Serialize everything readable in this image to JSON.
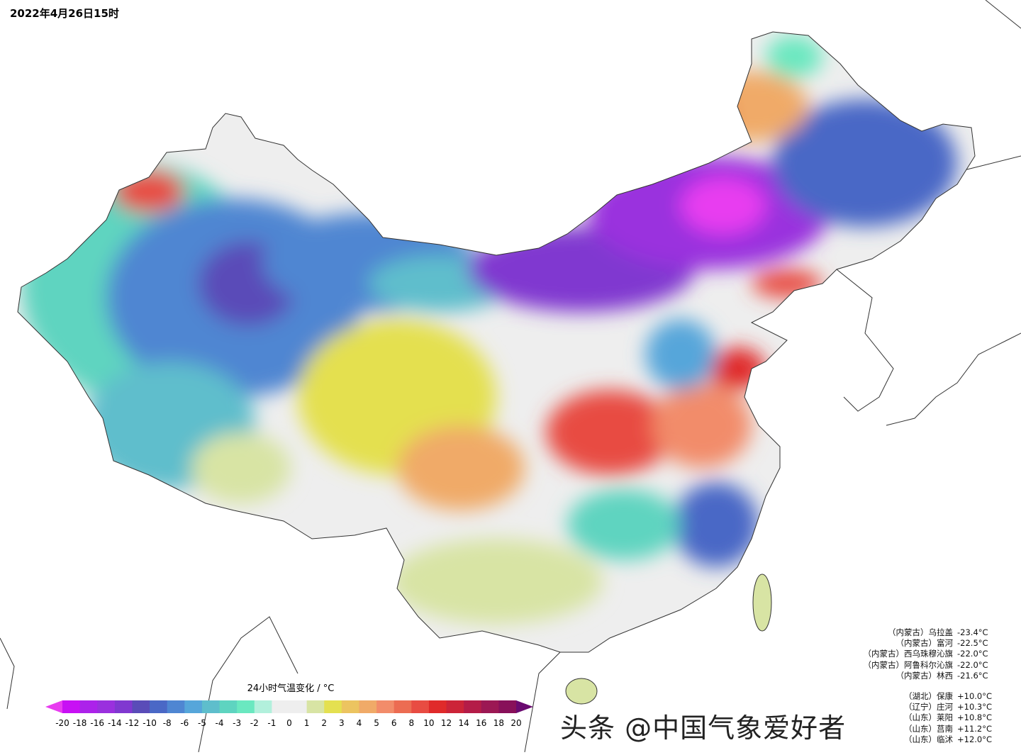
{
  "title": "2022年4月26日15时",
  "legend": {
    "title": "24小时气温变化 / °C",
    "ticks": [
      "-20",
      "-18",
      "-16",
      "-14",
      "-12",
      "-10",
      "-8",
      "-6",
      "-5",
      "-4",
      "-3",
      "-2",
      "-1",
      "0",
      "1",
      "2",
      "3",
      "4",
      "5",
      "6",
      "8",
      "10",
      "12",
      "14",
      "16",
      "18",
      "20"
    ],
    "under_color": "#e83cf0",
    "over_color": "#6a0a70",
    "colors": [
      "#c810f4",
      "#ac22ea",
      "#9a30de",
      "#8038d0",
      "#5a4cb8",
      "#4a68c6",
      "#4f86d2",
      "#56a6da",
      "#5ebecc",
      "#5ed4c0",
      "#6ae8c0",
      "#b2f0dc",
      "#eeeeee",
      "#eeeeee",
      "#d8e4a4",
      "#e4e050",
      "#ecc460",
      "#f0aa68",
      "#f28c6a",
      "#ec6c52",
      "#e84c42",
      "#e02a2a",
      "#cc2438",
      "#b41c48",
      "#9c1854",
      "#88105a"
    ]
  },
  "stations": {
    "cold": [
      {
        "name": "（内蒙古）乌拉盖",
        "value": "-23.4°C"
      },
      {
        "name": "（内蒙古）富河",
        "value": "-22.5°C"
      },
      {
        "name": "（内蒙古）西乌珠穆沁旗",
        "value": "-22.0°C"
      },
      {
        "name": "（内蒙古）阿鲁科尔沁旗",
        "value": "-22.0°C"
      },
      {
        "name": "（内蒙古）林西",
        "value": "-21.6°C"
      }
    ],
    "warm": [
      {
        "name": "（湖北）保康",
        "value": "+10.0°C"
      },
      {
        "name": "（辽宁）庄河",
        "value": "+10.3°C"
      },
      {
        "name": "（山东）莱阳",
        "value": "+10.8°C"
      },
      {
        "name": "（山东）莒南",
        "value": "+11.2°C"
      },
      {
        "name": "（山东）临沭",
        "value": "+12.0°C"
      }
    ]
  },
  "watermark": "头条 @中国气象爱好者"
}
